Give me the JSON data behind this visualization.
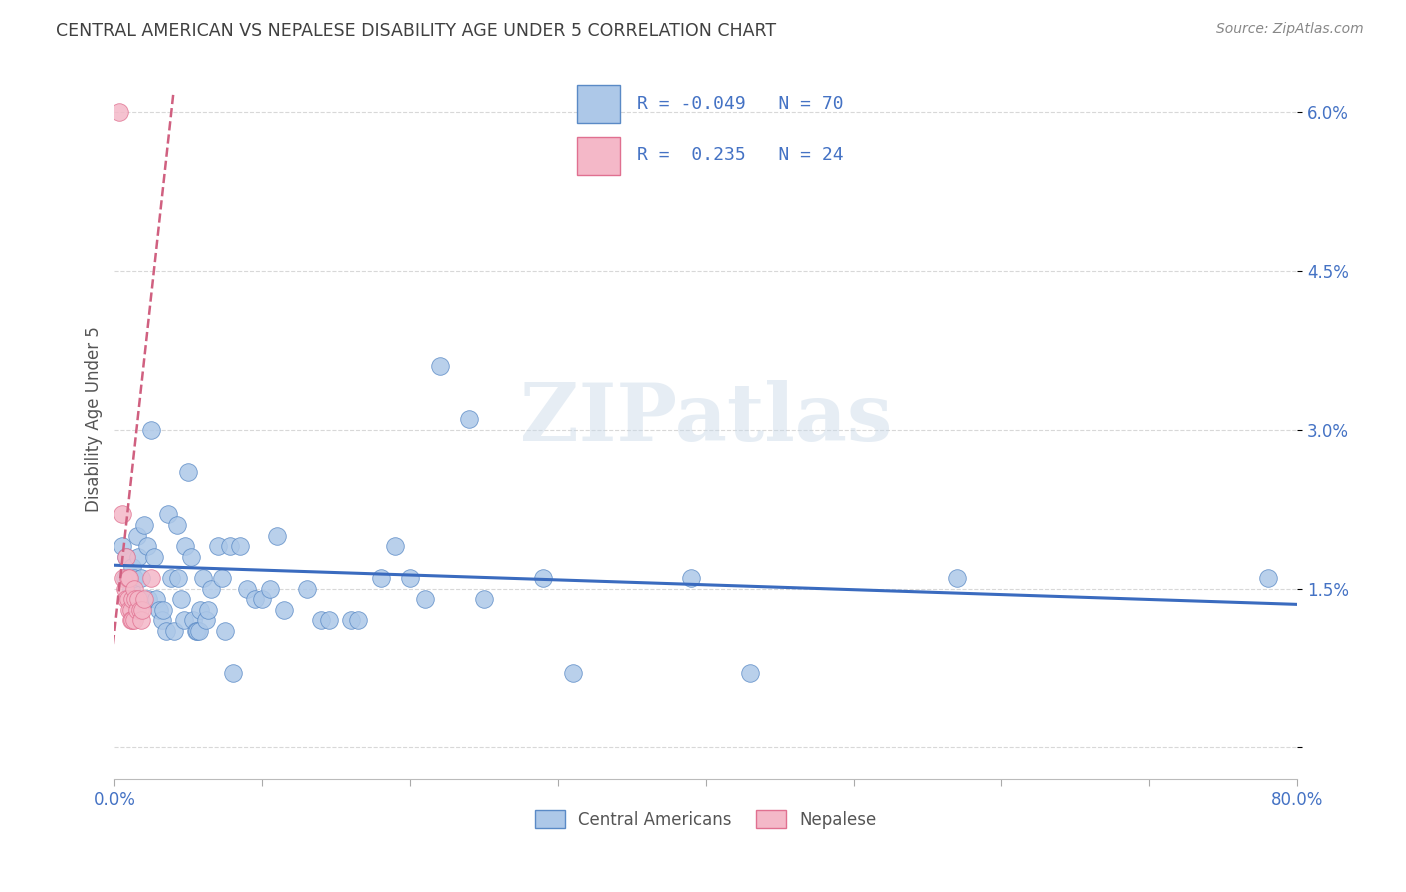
{
  "title": "CENTRAL AMERICAN VS NEPALESE DISABILITY AGE UNDER 5 CORRELATION CHART",
  "source": "Source: ZipAtlas.com",
  "watermark": "ZIPatlas",
  "ylabel": "Disability Age Under 5",
  "xlim": [
    0.0,
    0.8
  ],
  "ylim": [
    -0.003,
    0.065
  ],
  "xticks": [
    0.0,
    0.1,
    0.2,
    0.3,
    0.4,
    0.5,
    0.6,
    0.7,
    0.8
  ],
  "xticklabels": [
    "0.0%",
    "",
    "",
    "",
    "",
    "",
    "",
    "",
    "80.0%"
  ],
  "yticks": [
    0.0,
    0.015,
    0.03,
    0.045,
    0.06
  ],
  "yticklabels": [
    "",
    "1.5%",
    "3.0%",
    "4.5%",
    "6.0%"
  ],
  "blue_R": "-0.049",
  "blue_N": "70",
  "pink_R": "0.235",
  "pink_N": "24",
  "blue_color": "#adc8e8",
  "blue_edge_color": "#5a8ac6",
  "blue_line_color": "#3a6bbf",
  "pink_color": "#f4b8c8",
  "pink_edge_color": "#e07090",
  "pink_line_color": "#d06080",
  "grid_color": "#d8d8d8",
  "title_color": "#404040",
  "legend_label_color": "#4472c4",
  "blue_scatter": [
    [
      0.005,
      0.019
    ],
    [
      0.007,
      0.016
    ],
    [
      0.008,
      0.018
    ],
    [
      0.01,
      0.016
    ],
    [
      0.011,
      0.015
    ],
    [
      0.012,
      0.017
    ],
    [
      0.013,
      0.016
    ],
    [
      0.015,
      0.02
    ],
    [
      0.016,
      0.018
    ],
    [
      0.017,
      0.014
    ],
    [
      0.018,
      0.016
    ],
    [
      0.02,
      0.021
    ],
    [
      0.022,
      0.019
    ],
    [
      0.023,
      0.014
    ],
    [
      0.025,
      0.03
    ],
    [
      0.027,
      0.018
    ],
    [
      0.028,
      0.014
    ],
    [
      0.03,
      0.013
    ],
    [
      0.032,
      0.012
    ],
    [
      0.033,
      0.013
    ],
    [
      0.035,
      0.011
    ],
    [
      0.036,
      0.022
    ],
    [
      0.038,
      0.016
    ],
    [
      0.04,
      0.011
    ],
    [
      0.042,
      0.021
    ],
    [
      0.043,
      0.016
    ],
    [
      0.045,
      0.014
    ],
    [
      0.047,
      0.012
    ],
    [
      0.048,
      0.019
    ],
    [
      0.05,
      0.026
    ],
    [
      0.052,
      0.018
    ],
    [
      0.053,
      0.012
    ],
    [
      0.055,
      0.011
    ],
    [
      0.056,
      0.011
    ],
    [
      0.057,
      0.011
    ],
    [
      0.058,
      0.013
    ],
    [
      0.06,
      0.016
    ],
    [
      0.062,
      0.012
    ],
    [
      0.063,
      0.013
    ],
    [
      0.065,
      0.015
    ],
    [
      0.07,
      0.019
    ],
    [
      0.073,
      0.016
    ],
    [
      0.075,
      0.011
    ],
    [
      0.078,
      0.019
    ],
    [
      0.08,
      0.007
    ],
    [
      0.085,
      0.019
    ],
    [
      0.09,
      0.015
    ],
    [
      0.095,
      0.014
    ],
    [
      0.1,
      0.014
    ],
    [
      0.105,
      0.015
    ],
    [
      0.11,
      0.02
    ],
    [
      0.115,
      0.013
    ],
    [
      0.13,
      0.015
    ],
    [
      0.14,
      0.012
    ],
    [
      0.145,
      0.012
    ],
    [
      0.16,
      0.012
    ],
    [
      0.165,
      0.012
    ],
    [
      0.18,
      0.016
    ],
    [
      0.19,
      0.019
    ],
    [
      0.2,
      0.016
    ],
    [
      0.21,
      0.014
    ],
    [
      0.22,
      0.036
    ],
    [
      0.24,
      0.031
    ],
    [
      0.25,
      0.014
    ],
    [
      0.29,
      0.016
    ],
    [
      0.31,
      0.007
    ],
    [
      0.39,
      0.016
    ],
    [
      0.43,
      0.007
    ],
    [
      0.57,
      0.016
    ],
    [
      0.78,
      0.016
    ]
  ],
  "pink_scatter": [
    [
      0.003,
      0.06
    ],
    [
      0.005,
      0.022
    ],
    [
      0.006,
      0.016
    ],
    [
      0.007,
      0.015
    ],
    [
      0.008,
      0.014
    ],
    [
      0.008,
      0.018
    ],
    [
      0.009,
      0.016
    ],
    [
      0.009,
      0.014
    ],
    [
      0.01,
      0.016
    ],
    [
      0.01,
      0.013
    ],
    [
      0.011,
      0.013
    ],
    [
      0.011,
      0.012
    ],
    [
      0.012,
      0.014
    ],
    [
      0.012,
      0.012
    ],
    [
      0.013,
      0.015
    ],
    [
      0.013,
      0.012
    ],
    [
      0.014,
      0.014
    ],
    [
      0.015,
      0.013
    ],
    [
      0.016,
      0.014
    ],
    [
      0.017,
      0.013
    ],
    [
      0.018,
      0.012
    ],
    [
      0.019,
      0.013
    ],
    [
      0.02,
      0.014
    ],
    [
      0.025,
      0.016
    ]
  ],
  "blue_trend_x": [
    0.0,
    0.8
  ],
  "blue_trend_y": [
    0.0172,
    0.0135
  ],
  "pink_trend_x": [
    -0.002,
    0.04
  ],
  "pink_trend_y": [
    0.0085,
    0.062
  ]
}
